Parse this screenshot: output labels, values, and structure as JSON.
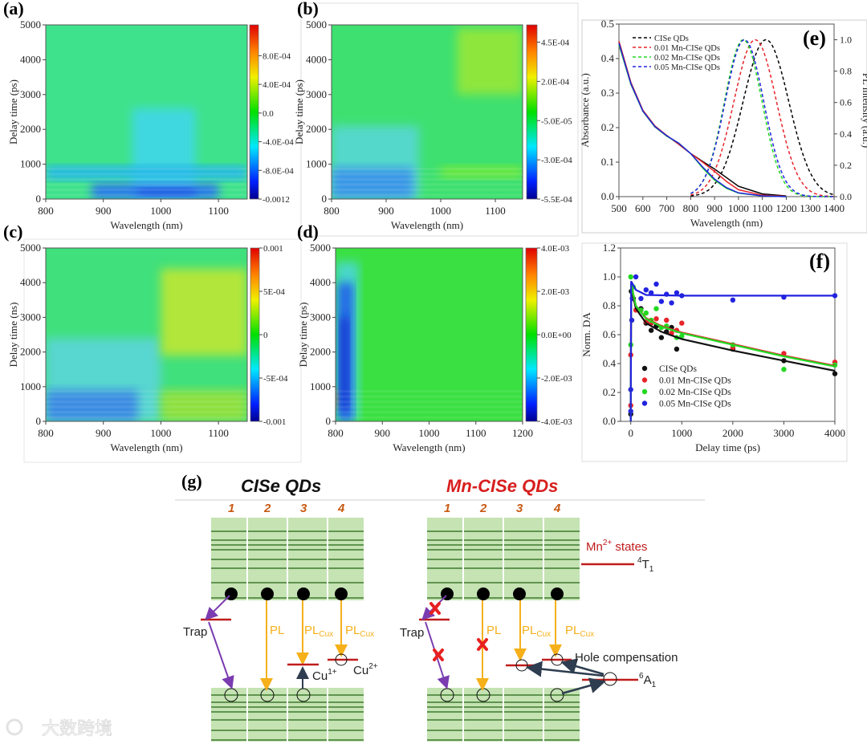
{
  "figure": {
    "panel_labels": [
      "(a)",
      "(b)",
      "(c)",
      "(d)",
      "(e)",
      "(f)",
      "(g)"
    ],
    "watermark": "大数跨境"
  },
  "chart_data": [
    {
      "type": "heatmap",
      "panel": "(a)",
      "xlabel": "Wavelength (nm)",
      "ylabel": "Delay time (ps)",
      "xlim": [
        800,
        1150
      ],
      "ylim": [
        0,
        5000
      ],
      "xticks": [
        "800",
        "900",
        "1000",
        "1100"
      ],
      "yticks": [
        "0",
        "1000",
        "2000",
        "3000",
        "4000",
        "5000"
      ],
      "colorbar": {
        "range": [
          -0.0012,
          0.00123
        ],
        "ticks": [
          {
            "label": "8.0E-04",
            "value": 0.0008
          },
          {
            "label": "4.0E-04",
            "value": 0.0004
          },
          {
            "label": "0.0",
            "value": 0
          },
          {
            "label": "-4.0E-04",
            "value": -0.0004
          },
          {
            "label": "-8.0E-04",
            "value": -0.0008
          },
          {
            "label": "-0.0012",
            "value": -0.0012
          }
        ]
      },
      "base_color": "#3fe28c",
      "regions": [
        {
          "x": [
            950,
            1060
          ],
          "y": [
            0,
            2600
          ],
          "color": "#3fd8e0"
        },
        {
          "x": [
            800,
            1150
          ],
          "y": [
            550,
            950
          ],
          "color": "#25b8e6"
        },
        {
          "x": [
            880,
            1100
          ],
          "y": [
            0,
            450
          ],
          "color": "#2a78ea"
        },
        {
          "x": [
            960,
            1060
          ],
          "y": [
            100,
            300
          ],
          "color": "#1a50e0"
        }
      ]
    },
    {
      "type": "heatmap",
      "panel": "(b)",
      "xlabel": "Wavelength (nm)",
      "ylabel": "Delay time (ps)",
      "xlim": [
        800,
        1150
      ],
      "ylim": [
        0,
        5000
      ],
      "xticks": [
        "800",
        "900",
        "1000",
        "1100"
      ],
      "yticks": [
        "0",
        "1000",
        "2000",
        "3000",
        "4000",
        "5000"
      ],
      "colorbar": {
        "range": [
          -0.00055,
          0.00056
        ],
        "ticks": [
          {
            "label": "4.5E-04",
            "value": 0.00045
          },
          {
            "label": "2.0E-04",
            "value": 0.0002
          },
          {
            "label": "-5.0E-05",
            "value": -5e-05
          },
          {
            "label": "-3.0E-04",
            "value": -0.0003
          },
          {
            "label": "-5.5E-04",
            "value": -0.00055
          }
        ]
      },
      "base_color": "#3ee070",
      "regions": [
        {
          "x": [
            800,
            960
          ],
          "y": [
            0,
            2100
          ],
          "color": "#55d8cc"
        },
        {
          "x": [
            800,
            950
          ],
          "y": [
            0,
            900
          ],
          "color": "#3a98e6"
        },
        {
          "x": [
            1030,
            1150
          ],
          "y": [
            3000,
            4900
          ],
          "color": "#8ee63e"
        },
        {
          "x": [
            1000,
            1150
          ],
          "y": [
            600,
            950
          ],
          "color": "#6ee83e"
        }
      ]
    },
    {
      "type": "heatmap",
      "panel": "(c)",
      "xlabel": "Wavelength (nm)",
      "ylabel": "Delay time (ns)",
      "xlim": [
        800,
        1150
      ],
      "ylim": [
        0,
        5000
      ],
      "xticks": [
        "800",
        "900",
        "1000",
        "1100"
      ],
      "yticks": [
        "0",
        "1000",
        "2000",
        "3000",
        "4000",
        "5000"
      ],
      "colorbar": {
        "range": [
          -0.001,
          0.001
        ],
        "ticks": [
          {
            "label": "0.001",
            "value": 0.001
          },
          {
            "label": "5E-04",
            "value": 0.0005
          },
          {
            "label": "0",
            "value": 0
          },
          {
            "label": "-5E-04",
            "value": -0.0005
          },
          {
            "label": "-0.001",
            "value": -0.001
          }
        ]
      },
      "base_color": "#40e07c",
      "regions": [
        {
          "x": [
            800,
            1000
          ],
          "y": [
            0,
            2400
          ],
          "color": "#58d6d0"
        },
        {
          "x": [
            800,
            960
          ],
          "y": [
            0,
            900
          ],
          "color": "#3a8ce2"
        },
        {
          "x": [
            1000,
            1150
          ],
          "y": [
            1900,
            4400
          ],
          "color": "#b2e63a"
        },
        {
          "x": [
            1000,
            1150
          ],
          "y": [
            0,
            900
          ],
          "color": "#8ee040"
        }
      ]
    },
    {
      "type": "heatmap",
      "panel": "(d)",
      "xlabel": "Wavelength (nm)",
      "ylabel": "Delay time (ps)",
      "xlim": [
        800,
        1200
      ],
      "ylim": [
        0,
        5000
      ],
      "xticks": [
        "800",
        "900",
        "1000",
        "1100",
        "1200"
      ],
      "yticks": [
        "0",
        "1000",
        "2000",
        "3000",
        "4000",
        "5000"
      ],
      "colorbar": {
        "range": [
          -0.004,
          0.004
        ],
        "ticks": [
          {
            "label": "4.0E-03",
            "value": 0.004
          },
          {
            "label": "2.0E-03",
            "value": 0.002
          },
          {
            "label": "0.0E+00",
            "value": 0
          },
          {
            "label": "-2.0E-03",
            "value": -0.002
          },
          {
            "label": "-4.0E-03",
            "value": -0.004
          }
        ]
      },
      "base_color": "#3ae042",
      "regions": [
        {
          "x": [
            800,
            850
          ],
          "y": [
            0,
            4600
          ],
          "color": "#48d8c8"
        },
        {
          "x": [
            805,
            838
          ],
          "y": [
            0,
            4000
          ],
          "color": "#2466e8"
        },
        {
          "x": [
            810,
            828
          ],
          "y": [
            300,
            3000
          ],
          "color": "#1232d0"
        },
        {
          "x": [
            800,
            806
          ],
          "y": [
            400,
            900
          ],
          "color": "#e03a20"
        }
      ]
    },
    {
      "type": "line",
      "panel": "(e)",
      "xlabel": "Wavelength (nm)",
      "ylabel": "Absorbance (a.u.)",
      "y2label": "PL intensity (a.u.)",
      "xlim": [
        500,
        1400
      ],
      "ylim": [
        0,
        0.5
      ],
      "y2lim": [
        0,
        1.1
      ],
      "xticks": [
        "500",
        "600",
        "700",
        "800",
        "900",
        "1000",
        "1100",
        "1200",
        "1300",
        "1400"
      ],
      "yticks": [
        "0.0",
        "0.1",
        "0.2",
        "0.3",
        "0.4",
        "0.5"
      ],
      "y2ticks": [
        "0.0",
        "0.2",
        "0.4",
        "0.6",
        "0.8",
        "1.0"
      ],
      "legend_position": "top-left",
      "absorbance_x": [
        500,
        550,
        600,
        650,
        700,
        750,
        800,
        850,
        900,
        950,
        1000,
        1100,
        1200
      ],
      "series": [
        {
          "name": "CISe QDs",
          "color": "#000000",
          "absorbance": [
            0.45,
            0.33,
            0.25,
            0.205,
            0.177,
            0.152,
            0.125,
            0.102,
            0.08,
            0.055,
            0.03,
            0.008,
            0.002
          ],
          "pl_peak": 1115,
          "pl_fwhm": 225
        },
        {
          "name": "0.01 Mn-CISe QDs",
          "color": "#e8242a",
          "absorbance": [
            0.45,
            0.33,
            0.25,
            0.205,
            0.177,
            0.152,
            0.125,
            0.1,
            0.073,
            0.044,
            0.02,
            0.004,
            0.001
          ],
          "pl_peak": 1070,
          "pl_fwhm": 210
        },
        {
          "name": "0.02 Mn-CISe QDs",
          "color": "#22d822",
          "absorbance": [
            0.44,
            0.325,
            0.247,
            0.202,
            0.175,
            0.155,
            0.125,
            0.083,
            0.048,
            0.024,
            0.01,
            0.002,
            0
          ],
          "pl_peak": 1020,
          "pl_fwhm": 185
        },
        {
          "name": "0.05 Mn-CISe QDs",
          "color": "#2222e0",
          "absorbance": [
            0.445,
            0.327,
            0.248,
            0.203,
            0.176,
            0.155,
            0.125,
            0.086,
            0.051,
            0.026,
            0.011,
            0.002,
            0
          ],
          "pl_peak": 1025,
          "pl_fwhm": 190
        }
      ]
    },
    {
      "type": "scatter",
      "panel": "(f)",
      "xlabel": "Delay time (ps)",
      "ylabel": "Norm. DA",
      "xlim": [
        -200,
        4000
      ],
      "ylim": [
        0,
        1.2
      ],
      "xticks": [
        "0",
        "1000",
        "2000",
        "3000",
        "4000"
      ],
      "yticks": [
        "0.0",
        "0.2",
        "0.4",
        "0.6",
        "0.8",
        "1.0",
        "1.2"
      ],
      "legend_position": "bottom-left",
      "series": [
        {
          "name": "CISe QDs",
          "color": "#111111",
          "points": [
            [
              0,
              0.05
            ],
            [
              10,
              0.9
            ],
            [
              50,
              0.85
            ],
            [
              200,
              0.78
            ],
            [
              300,
              0.68
            ],
            [
              400,
              0.63
            ],
            [
              500,
              0.66
            ],
            [
              600,
              0.58
            ],
            [
              700,
              0.62
            ],
            [
              800,
              0.65
            ],
            [
              900,
              0.5
            ],
            [
              2000,
              0.5
            ],
            [
              3000,
              0.42
            ],
            [
              4000,
              0.33
            ]
          ],
          "fit": [
            [
              0,
              0
            ],
            [
              8,
              0.93
            ],
            [
              100,
              0.78
            ],
            [
              300,
              0.68
            ],
            [
              600,
              0.62
            ],
            [
              1000,
              0.57
            ],
            [
              2000,
              0.49
            ],
            [
              3000,
              0.42
            ],
            [
              4000,
              0.35
            ]
          ]
        },
        {
          "name": "0.01 Mn-CISe QDs",
          "color": "#e8242a",
          "points": [
            [
              0,
              0.46
            ],
            [
              0,
              0.11
            ],
            [
              100,
              0.77
            ],
            [
              300,
              0.69
            ],
            [
              400,
              0.68
            ],
            [
              500,
              0.71
            ],
            [
              600,
              0.65
            ],
            [
              700,
              0.7
            ],
            [
              800,
              0.61
            ],
            [
              900,
              0.63
            ],
            [
              1000,
              0.68
            ],
            [
              2000,
              0.51
            ],
            [
              3000,
              0.47
            ],
            [
              4000,
              0.41
            ]
          ],
          "fit": [
            [
              0,
              0
            ],
            [
              8,
              0.95
            ],
            [
              100,
              0.8
            ],
            [
              300,
              0.715
            ],
            [
              600,
              0.66
            ],
            [
              1000,
              0.615
            ],
            [
              2000,
              0.535
            ],
            [
              3000,
              0.455
            ],
            [
              4000,
              0.385
            ]
          ]
        },
        {
          "name": "0.02 Mn-CISe QDs",
          "color": "#22d822",
          "points": [
            [
              0,
              0.53
            ],
            [
              0,
              1.0
            ],
            [
              50,
              0.93
            ],
            [
              200,
              0.77
            ],
            [
              300,
              0.75
            ],
            [
              400,
              0.7
            ],
            [
              500,
              0.78
            ],
            [
              600,
              0.65
            ],
            [
              700,
              0.66
            ],
            [
              900,
              0.58
            ],
            [
              1000,
              0.59
            ],
            [
              2000,
              0.53
            ],
            [
              3000,
              0.36
            ],
            [
              4000,
              0.39
            ]
          ],
          "fit": [
            [
              0,
              0
            ],
            [
              8,
              0.95
            ],
            [
              100,
              0.8
            ],
            [
              300,
              0.71
            ],
            [
              600,
              0.655
            ],
            [
              1000,
              0.61
            ],
            [
              2000,
              0.53
            ],
            [
              3000,
              0.45
            ],
            [
              4000,
              0.38
            ]
          ]
        },
        {
          "name": "0.05 Mn-CISe QDs",
          "color": "#2222e0",
          "points": [
            [
              0,
              0.22
            ],
            [
              0,
              0.07
            ],
            [
              20,
              0.7
            ],
            [
              30,
              0.85
            ],
            [
              100,
              1.0
            ],
            [
              200,
              0.85
            ],
            [
              300,
              0.91
            ],
            [
              400,
              0.89
            ],
            [
              500,
              0.95
            ],
            [
              600,
              0.83
            ],
            [
              700,
              0.88
            ],
            [
              800,
              0.82
            ],
            [
              900,
              0.89
            ],
            [
              1000,
              0.87
            ],
            [
              2000,
              0.84
            ],
            [
              3000,
              0.86
            ],
            [
              4000,
              0.87
            ]
          ],
          "fit": [
            [
              0,
              0
            ],
            [
              8,
              0.97
            ],
            [
              100,
              0.91
            ],
            [
              300,
              0.875
            ],
            [
              1000,
              0.87
            ],
            [
              4000,
              0.87
            ]
          ]
        }
      ]
    }
  ],
  "diagram": {
    "left_title": "CISe QDs",
    "right_title": "Mn-CISe QDs",
    "title_colors": {
      "left": "#111111",
      "right": "#d81e1e"
    },
    "columns": [
      "1",
      "2",
      "3",
      "4"
    ],
    "labels": {
      "trap": "Trap",
      "pl": "PL",
      "pl_main": "PL",
      "pl_sub": "Cux",
      "cu": "Cu",
      "cu1_sup": "1+",
      "cu2_sup": "2+",
      "mn": "Mn",
      "mn_sup": "2+",
      "mn_states": " states",
      "t_sup": "4",
      "t_main": "T",
      "t_sub": "1",
      "a_sup": "6",
      "a_main": "A",
      "a_sub": "1",
      "hole_compensation": "Hole compensation"
    },
    "colors": {
      "band": "#c5e3b3",
      "band_line": "#3f7a30",
      "level": "#c01c1c",
      "pl": "#f5b01a",
      "trap": "#7a3cb0",
      "hole": "#2e3d4f",
      "number": "#c85a14"
    }
  }
}
